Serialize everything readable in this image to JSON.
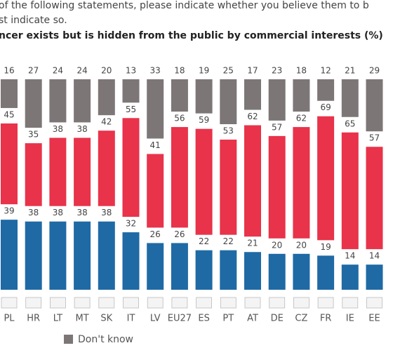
{
  "chart_data": {
    "type": "stacked_bar",
    "subtitle_lines": [
      "of the following statements, please indicate whether you believe them to b",
      "st indicate so."
    ],
    "title": "ncer exists but is hidden from the public by commercial interests (%)",
    "categories": [
      "PL",
      "HR",
      "LT",
      "MT",
      "SK",
      "IT",
      "LV",
      "EU27",
      "ES",
      "PT",
      "AT",
      "DE",
      "CZ",
      "FR",
      "IE",
      "EE"
    ],
    "series": [
      {
        "color": "#1f6aa5",
        "values": [
          39,
          38,
          38,
          38,
          38,
          32,
          26,
          26,
          22,
          22,
          21,
          20,
          20,
          19,
          14,
          14
        ]
      },
      {
        "color": "#e8334a",
        "values": [
          45,
          35,
          38,
          38,
          42,
          55,
          41,
          56,
          59,
          53,
          62,
          57,
          62,
          69,
          65,
          57
        ]
      },
      {
        "name": "Don't know",
        "color": "#7d7677",
        "values": [
          16,
          27,
          24,
          24,
          20,
          13,
          33,
          18,
          19,
          25,
          17,
          23,
          18,
          12,
          21,
          29
        ]
      }
    ],
    "ylim": [
      0,
      100
    ]
  }
}
